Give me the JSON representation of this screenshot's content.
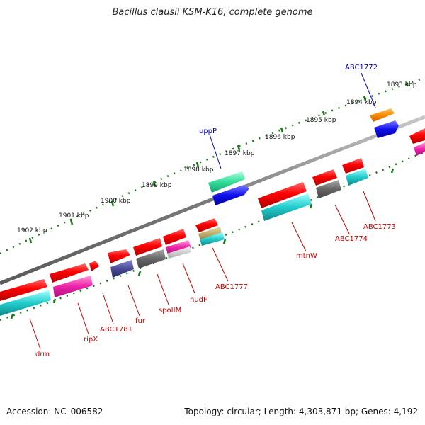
{
  "title": "Bacillus clausii KSM-K16, complete genome",
  "footer": {
    "accession": "Accession: NC_006582",
    "topology": "Topology: circular; Length: 4,303,871 bp; Genes: 4,192"
  },
  "colors": {
    "backbone": "#8a8a8a",
    "ticks": "#1a7a1a",
    "forward_label": "#0000cc",
    "reverse_label": "#cc0000"
  },
  "kbp_labels": [
    "1893 kbp",
    "1894 kbp",
    "1895 kbp",
    "1896 kbp",
    "1897 kbp",
    "1898 kbp",
    "1899 kbp",
    "1900 kbp",
    "1901 kbp",
    "1902 kbp"
  ],
  "gene_labels": [
    {
      "text": "ABC1772",
      "strand": "forward"
    },
    {
      "text": "uppP",
      "strand": "forward"
    },
    {
      "text": "ABC1773",
      "strand": "reverse"
    },
    {
      "text": "ABC1774",
      "strand": "reverse"
    },
    {
      "text": "mtnW",
      "strand": "reverse"
    },
    {
      "text": "ABC1777",
      "strand": "reverse"
    },
    {
      "text": "nudF",
      "strand": "reverse"
    },
    {
      "text": "spoIIM",
      "strand": "reverse"
    },
    {
      "text": "fur",
      "strand": "reverse"
    },
    {
      "text": "ABC1781",
      "strand": "reverse"
    },
    {
      "text": "ripX",
      "strand": "reverse"
    },
    {
      "text": "drm",
      "strand": "reverse"
    }
  ]
}
